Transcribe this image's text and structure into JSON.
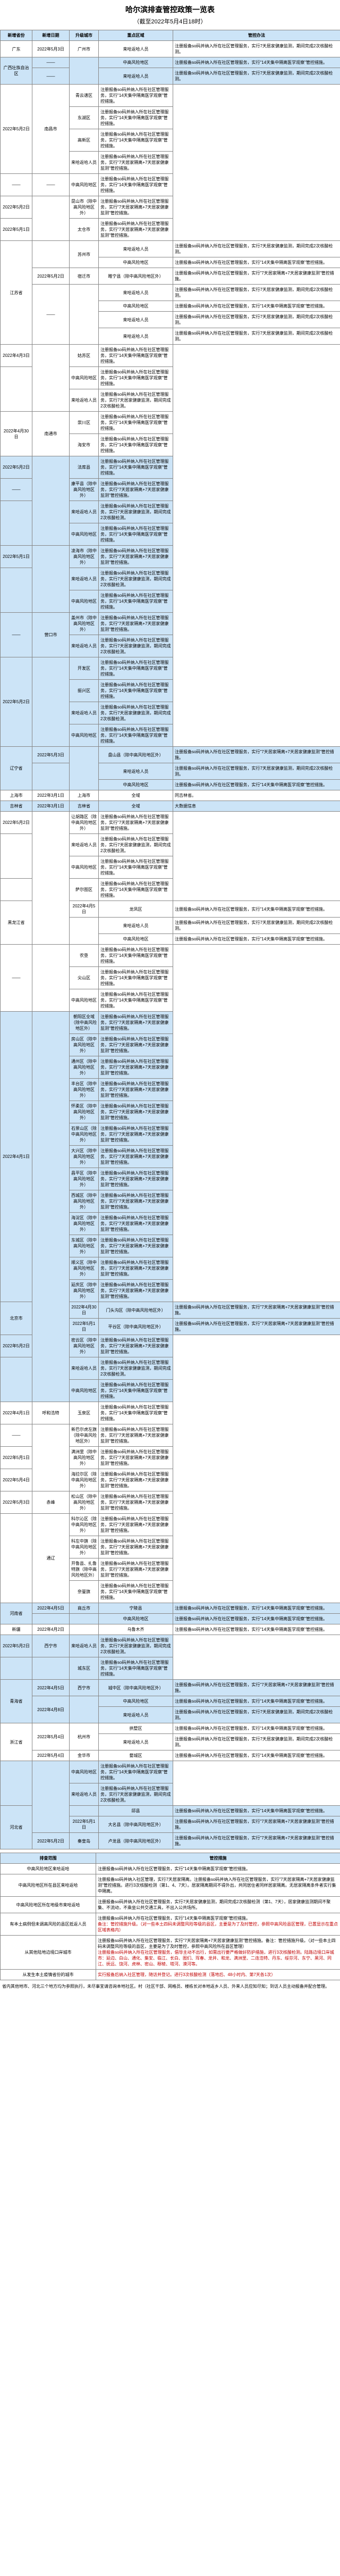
{
  "title": "哈尔滨排查管控政策一览表",
  "subtitle": "（截至2022年5月4日18时）",
  "headers": [
    "新增省份",
    "新增日期",
    "升级城市",
    "重点区域",
    "管控办法"
  ],
  "rows": [
    {
      "bg": false,
      "prov": "广东",
      "provRows": 1,
      "date": "2022年5月3日",
      "dateRows": 1,
      "city": "广州市",
      "cityRows": 1,
      "area": "来哈返哈人员",
      "policy": "注册报备so码并纳入所在社区管理服务，实行7天居家健康监测，期间完成2次核酸检测。"
    },
    {
      "bg": true,
      "prov": "广西壮族自治区",
      "provRows": 2,
      "date": "——",
      "dateRows": 1,
      "city": "",
      "cityRows": 2,
      "area": "中高风险地区",
      "policy": "注册报备so码并纳入所在社区管理服务，实行\"14天集中隔离医学观察\"管控措施。"
    },
    {
      "bg": true,
      "date": "——",
      "dateRows": 1,
      "area": "来哈返哈人员",
      "policy": "注册报备so码并纳入所在社区管理服务，实行7天居家健康监测，期间完成2次核酸检测。"
    },
    {
      "bg": false,
      "prov": "",
      "provRows": 0,
      "date": "2022年5月2日",
      "dateRows": 4,
      "city": "南昌市",
      "cityRows": 4,
      "area": "青云谱区",
      "policy": "注册报备so码并纳入所在社区管理服务，实行\"14天集中隔离医学观察\"管控措施。"
    },
    {
      "bg": false,
      "area": "东湖区",
      "policy": "注册报备so码并纳入所在社区管理服务，实行\"14天集中隔离医学观察\"管控措施。"
    },
    {
      "bg": false,
      "area": "高新区",
      "policy": "注册报备so码并纳入所在社区管理服务，实行\"14天集中隔离医学观察\"管控措施。"
    },
    {
      "bg": false,
      "area": "来哈返哈人员",
      "policy": "注册报备so码并纳入所在社区管理服务，实行\"7天居家隔离+7天居家健康监测\"管控措施。"
    },
    {
      "bg": false,
      "prov": "",
      "date": "——",
      "dateRows": 1,
      "city": "——",
      "cityRows": 1,
      "area": "中高风险地区",
      "policy": "注册报备so码并纳入所在社区管理服务，实行\"14天集中隔离医学观察\"管控措施。"
    },
    {
      "bg": false,
      "prov": "",
      "date": "2022年5月2日",
      "dateRows": 1,
      "city": "",
      "cityRows": 2,
      "area": "昆山市（除中高风险地区外）",
      "policy": "注册报备so码并纳入所在社区管理服务，实行\"7天居家隔离+7天居家健康监测\"管控措施。"
    },
    {
      "bg": false,
      "prov": "",
      "date": "2022年5月1日",
      "dateRows": 1,
      "area": "太仓市",
      "policy": "注册报备so码并纳入所在社区管理服务，实行\"7天居家隔离+7天居家健康监测\"管控措施。"
    },
    {
      "bg": false,
      "prov": "江苏省",
      "provRows": 7,
      "date": "",
      "dateRows": 2,
      "city": "苏州市",
      "cityRows": 2,
      "area": "来哈返哈人员",
      "policy": "注册报备so码并纳入所在社区管理服务，实行7天居家健康监测，期间完成2次核酸检测。"
    },
    {
      "bg": false,
      "area": "中高风险地区",
      "policy": "注册报备so码并纳入所在社区管理服务，实行\"14天集中隔离医学观察\"管控措施。"
    },
    {
      "bg": false,
      "date": "2022年5月2日",
      "dateRows": 1,
      "city": "宿迁市",
      "cityRows": 1,
      "area": "睢宁县（除中高风险地区外）",
      "policy": "注册报备so码并纳入所在社区管理服务，实行\"7天居家隔离+7天居家健康监测\"管控措施。"
    },
    {
      "bg": false,
      "date": "——",
      "dateRows": 4,
      "city": "",
      "cityRows": 4,
      "area": "来哈返哈人员",
      "policy": "注册报备so码并纳入所在社区管理服务，实行7天居家健康监测，期间完成2次核酸检测。"
    },
    {
      "bg": false,
      "area": "中高风险地区",
      "policy": "注册报备so码并纳入所在社区管理服务，实行\"14天集中隔离医学观察\"管控措施。"
    },
    {
      "bg": false,
      "area": "来哈返哈人员",
      "policy": "注册报备so码并纳入所在社区管理服务，实行7天居家健康监测，期间完成2次核酸检测。"
    },
    {
      "bg": false,
      "area": "来哈返哈人员",
      "policy": "注册报备so码并纳入所在社区管理服务，实行7天居家健康监测，期间完成2次核酸检测。"
    },
    {
      "bg": false,
      "prov": "",
      "date": "2022年4月3日",
      "dateRows": 1,
      "city": "",
      "cityRows": 3,
      "area": "姑苏区",
      "policy": "注册报备so码并纳入所在社区管理服务，实行\"14天集中隔离医学观察\"管控措施。"
    },
    {
      "bg": false,
      "date": "",
      "dateRows": 2,
      "area": "中高风险地区",
      "policy": "注册报备so码并纳入所在社区管理服务，实行\"14天集中隔离医学观察\"管控措施。"
    },
    {
      "bg": false,
      "area": "来哈返哈人员",
      "policy": "注册报备so码并纳入所在社区管理服务，实行7天居家健康监测，期间完成2次核酸检测。"
    },
    {
      "bg": false,
      "prov": "",
      "date": "2022年4月30日",
      "dateRows": 2,
      "city": "南通市",
      "cityRows": 2,
      "area": "崇川区",
      "policy": "注册报备so码并纳入所在社区管理服务，实行\"14天集中隔离医学观察\"管控措施。"
    },
    {
      "bg": false,
      "area": "海安市",
      "policy": "注册报备so码并纳入所在社区管理服务，实行\"14天集中隔离医学观察\"管控措施。"
    },
    {
      "bg": true,
      "prov": "",
      "provRows": 0,
      "date": "2022年5月2日",
      "dateRows": 1,
      "city": "",
      "cityRows": 4,
      "area": "法库县",
      "policy": "注册报备so码并纳入所在社区管理服务，实行\"14天集中隔离医学观察\"管控措施。"
    },
    {
      "bg": true,
      "date": "——",
      "dateRows": 1,
      "city": "沈阳市",
      "area": "康平县（除中高风险地区外）",
      "policy": "注册报备so码并纳入所在社区管理服务，实行\"7天居家隔离+7天居家健康监测\"管控措施。"
    },
    {
      "bg": true,
      "date": "",
      "dateRows": 2,
      "area": "来哈返哈人员",
      "policy": "注册报备so码并纳入所在社区管理服务，实行7天居家健康监测，期间完成2次核酸检测。"
    },
    {
      "bg": true,
      "area": "中高风险地区",
      "policy": "注册报备so码并纳入所在社区管理服务，实行\"14天集中隔离医学观察\"管控措施。"
    },
    {
      "bg": true,
      "prov": "",
      "date": "2022年5月1日",
      "dateRows": 1,
      "city": "",
      "cityRows": 3,
      "area": "凌海市（除中高风险地区外）",
      "policy": "注册报备so码并纳入所在社区管理服务，实行\"7天居家隔离+7天居家健康监测\"管控措施。"
    },
    {
      "bg": true,
      "date": "",
      "dateRows": 2,
      "city": "锦州市",
      "area": "来哈返哈人员",
      "policy": "注册报备so码并纳入所在社区管理服务，实行7天居家健康监测，期间完成2次核酸检测。"
    },
    {
      "bg": true,
      "area": "中高风险地区",
      "policy": "注册报备so码并纳入所在社区管理服务，实行\"14天集中隔离医学观察\"管控措施。"
    },
    {
      "bg": true,
      "prov": "",
      "date": "——",
      "dateRows": 2,
      "city": "营口市",
      "cityRows": 2,
      "area": "盖州市（除中高风险地区外）",
      "policy": "注册报备so码并纳入所在社区管理服务，实行\"7天居家隔离+7天居家健康监测\"管控措施。"
    },
    {
      "bg": true,
      "area": "来哈返哈人员",
      "policy": "注册报备so码并纳入所在社区管理服务，实行7天居家健康监测，期间完成2次核酸检测。"
    },
    {
      "bg": true,
      "prov": "",
      "date": "2022年5月2日",
      "dateRows": 4,
      "city": "",
      "cityRows": 4,
      "area": "开发区",
      "policy": "注册报备so码并纳入所在社区管理服务，实行\"14天集中隔离医学观察\"管控措施。"
    },
    {
      "bg": true,
      "city": "丹东市",
      "area": "振兴区",
      "policy": "注册报备so码并纳入所在社区管理服务，实行\"14天集中隔离医学观察\"管控措施。"
    },
    {
      "bg": true,
      "area": "来哈返哈人员",
      "policy": "注册报备so码并纳入所在社区管理服务，实行7天居家健康监测，期间完成2次核酸检测。"
    },
    {
      "bg": true,
      "area": "中高风险地区",
      "policy": "注册报备so码并纳入所在社区管理服务，实行\"14天集中隔离医学观察\"管控措施。"
    },
    {
      "bg": true,
      "prov": "辽宁省",
      "provRows": 3,
      "date": "2022年5月3日",
      "dateRows": 1,
      "city": "",
      "cityRows": 3,
      "area": "盘山县（除中高风险地区外）",
      "policy": "注册报备so码并纳入所在社区管理服务，实行\"7天居家隔离+7天居家健康监测\"管控措施。"
    },
    {
      "bg": true,
      "date": "",
      "dateRows": 2,
      "city": "盘锦市",
      "area": "来哈返哈人员",
      "policy": "注册报备so码并纳入所在社区管理服务，实行7天居家健康监测，期间完成2次核酸检测。"
    },
    {
      "bg": true,
      "area": "中高风险地区",
      "policy": "注册报备so码并纳入所在社区管理服务，实行\"14天集中隔离医学观察\"管控措施。"
    },
    {
      "bg": false,
      "prov": "上海市",
      "provRows": 1,
      "date": "2022年3月1日",
      "dateRows": 1,
      "city": "上海市",
      "cityRows": 1,
      "area": "全域",
      "policy": "同吉林省。"
    },
    {
      "bg": true,
      "prov": "吉林省",
      "provRows": 1,
      "date": "2022年3月1日",
      "dateRows": 1,
      "city": "吉林省",
      "cityRows": 1,
      "area": "全域",
      "policy": "大数据信息"
    },
    {
      "bg": false,
      "prov": "",
      "provRows": 0,
      "date": "2022年5月2日",
      "dateRows": 1,
      "city": "",
      "cityRows": 7,
      "area": "让胡路区（除中高风险地区外）",
      "policy": "注册报备so码并纳入所在社区管理服务，实行\"7天居家隔离+7天居家健康监测\"管控措施。"
    },
    {
      "bg": false,
      "date": "",
      "dateRows": 2,
      "city": "大庆市",
      "area": "来哈返哈人员",
      "policy": "注册报备so码并纳入所在社区管理服务，实行7天居家健康监测，期间完成2次核酸检测。"
    },
    {
      "bg": false,
      "area": "中高风险地区",
      "policy": "注册报备so码并纳入所在社区管理服务，实行\"14天集中隔离医学观察\"管控措施。"
    },
    {
      "bg": false,
      "date": "",
      "dateRows": 1,
      "area": "萨尔图区",
      "policy": "注册报备so码并纳入所在社区管理服务，实行\"14天集中隔离医学观察\"管控措施。"
    },
    {
      "bg": false,
      "prov": "黑龙江省",
      "provRows": 3,
      "date": "2022年4月5日",
      "dateRows": 1,
      "area": "龙凤区",
      "policy": "注册报备so码并纳入所在社区管理服务，实行\"14天集中隔离医学观察\"管控措施。"
    },
    {
      "bg": false,
      "date": "",
      "dateRows": 2,
      "area": "来哈返哈人员",
      "policy": "注册报备so码并纳入所在社区管理服务，实行7天居家健康监测，期间完成2次核酸检测。"
    },
    {
      "bg": false,
      "area": "中高风险地区",
      "policy": "注册报备so码并纳入所在社区管理服务，实行\"14天集中隔离医学观察\"管控措施。"
    },
    {
      "bg": false,
      "date": "——",
      "dateRows": 3,
      "city": "",
      "cityRows": 3,
      "area": "农垦",
      "policy": "注册报备so码并纳入所在社区管理服务，实行\"14天集中隔离医学观察\"管控措施。"
    },
    {
      "bg": false,
      "city": "双鸭山",
      "area": "尖山区",
      "policy": "注册报备so码并纳入所在社区管理服务，实行\"14天集中隔离医学观察\"管控措施。"
    },
    {
      "bg": false,
      "area": "中高风险地区",
      "policy": "注册报备so码并纳入所在社区管理服务，实行\"14天集中隔离医学观察\"管控措施。"
    },
    {
      "bg": true,
      "prov": "",
      "provRows": 0,
      "date": "2022年4月1日",
      "dateRows": 13,
      "city": "",
      "cityRows": 18,
      "area": "朝阳区全域（除中高风险地区外）",
      "policy": "注册报备so码并纳入所在社区管理服务，实行\"7天居家隔离+7天居家健康监测\"管控措施。"
    },
    {
      "bg": true,
      "area": "房山区（除中高风险地区外）",
      "policy": "注册报备so码并纳入所在社区管理服务，实行\"7天居家隔离+7天居家健康监测\"管控措施。"
    },
    {
      "bg": true,
      "area": "通州区（除中高风险地区外）",
      "policy": "注册报备so码并纳入所在社区管理服务，实行\"7天居家隔离+7天居家健康监测\"管控措施。"
    },
    {
      "bg": true,
      "area": "丰台区（除中高风险地区外）",
      "policy": "注册报备so码并纳入所在社区管理服务，实行\"7天居家隔离+7天居家健康监测\"管控措施。"
    },
    {
      "bg": true,
      "area": "怀柔区（除中高风险地区外）",
      "policy": "注册报备so码并纳入所在社区管理服务，实行\"7天居家隔离+7天居家健康监测\"管控措施。"
    },
    {
      "bg": true,
      "area": "石景山区（除中高风险地区外）",
      "policy": "注册报备so码并纳入所在社区管理服务，实行\"7天居家隔离+7天居家健康监测\"管控措施。"
    },
    {
      "bg": true,
      "area": "大兴区（除中高风险地区外）",
      "policy": "注册报备so码并纳入所在社区管理服务，实行\"7天居家隔离+7天居家健康监测\"管控措施。"
    },
    {
      "bg": true,
      "area": "昌平区（除中高风险地区外）",
      "policy": "注册报备so码并纳入所在社区管理服务，实行\"7天居家隔离+7天居家健康监测\"管控措施。"
    },
    {
      "bg": true,
      "area": "西城区（除中高风险地区外）",
      "policy": "注册报备so码并纳入所在社区管理服务，实行\"7天居家隔离+7天居家健康监测\"管控措施。"
    },
    {
      "bg": true,
      "area": "海淀区（除中高风险地区外）",
      "policy": "注册报备so码并纳入所在社区管理服务，实行\"7天居家隔离+7天居家健康监测\"管控措施。"
    },
    {
      "bg": true,
      "area": "东城区（除中高风险地区外）",
      "policy": "注册报备so码并纳入所在社区管理服务，实行\"7天居家隔离+7天居家健康监测\"管控措施。"
    },
    {
      "bg": true,
      "area": "顺义区（除中高风险地区外）",
      "policy": "注册报备so码并纳入所在社区管理服务，实行\"7天居家隔离+7天居家健康监测\"管控措施。"
    },
    {
      "bg": true,
      "area": "延庆区（除中高风险地区外）",
      "policy": "注册报备so码并纳入所在社区管理服务，实行\"7天居家隔离+7天居家健康监测\"管控措施。"
    },
    {
      "bg": true,
      "prov": "北京市",
      "provRows": 2,
      "date": "2022年4月30日",
      "dateRows": 1,
      "area": "门头沟区（除中高风险地区外）",
      "policy": "注册报备so码并纳入所在社区管理服务，实行\"7天居家隔离+7天居家健康监测\"管控措施。"
    },
    {
      "bg": true,
      "date": "2022年5月1日",
      "dateRows": 1,
      "area": "平谷区（除中高风险地区外）",
      "policy": "注册报备so码并纳入所在社区管理服务，实行\"7天居家隔离+7天居家健康监测\"管控措施。"
    },
    {
      "bg": true,
      "prov": "",
      "provRows": 0,
      "date": "2022年5月2日",
      "dateRows": 1,
      "city": "北京市",
      "area": "密云区（除中高风险地区外）",
      "policy": "注册报备so码并纳入所在社区管理服务，实行\"7天居家隔离+7天居家健康监测\"管控措施。"
    },
    {
      "bg": true,
      "date": "",
      "dateRows": 2,
      "area": "来哈返哈人员",
      "policy": "注册报备so码并纳入所在社区管理服务，实行7天居家健康监测，期间完成2次核酸检测。"
    },
    {
      "bg": true,
      "area": "中高风险地区",
      "policy": "注册报备so码并纳入所在社区管理服务，实行\"14天集中隔离医学观察\"管控措施。"
    },
    {
      "bg": false,
      "prov": "",
      "date": "2022年4月1日",
      "dateRows": 1,
      "city": "呼和浩特",
      "cityRows": 1,
      "area": "玉泉区",
      "policy": "注册报备so码并纳入所在社区管理服务，实行\"14天集中隔离医学观察\"管控措施。"
    },
    {
      "bg": false,
      "date": "——",
      "dateRows": 1,
      "city": "",
      "cityRows": 3,
      "area": "新巴尔虎左旗（除中高风险地区外）",
      "policy": "注册报备so码并纳入所在社区管理服务，实行\"7天居家隔离+7天居家健康监测\"管控措施。"
    },
    {
      "bg": false,
      "date": "2022年5月1日",
      "dateRows": 1,
      "city": "呼伦贝尔市",
      "area": "满洲里（除中高风险地区外）",
      "policy": "注册报备so码并纳入所在社区管理服务，实行\"7天居家隔离+7天居家健康监测\"管控措施。"
    },
    {
      "bg": false,
      "date": "2022年5月4日",
      "dateRows": 1,
      "area": "海拉尔区（除中高风险地区外）",
      "policy": "注册报备so码并纳入所在社区管理服务，实行\"7天居家隔离+7天居家健康监测\"管控措施。"
    },
    {
      "bg": false,
      "date": "2022年5月3日",
      "dateRows": 1,
      "city": "赤峰",
      "cityRows": 1,
      "area": "松山区（除中高风险地区外）",
      "policy": "注册报备so码并纳入所在社区管理服务，实行\"7天居家隔离+7天居家健康监测\"管控措施。"
    },
    {
      "bg": false,
      "date": "",
      "dateRows": 4,
      "city": "通辽",
      "cityRows": 4,
      "area": "科尔沁区（除中高风险地区外）",
      "policy": "注册报备so码并纳入所在社区管理服务，实行\"7天居家隔离+7天居家健康监测\"管控措施。"
    },
    {
      "bg": false,
      "area": "科左中旗（除中高风险地区外）",
      "policy": "注册报备so码并纳入所在社区管理服务，实行\"7天居家隔离+7天居家健康监测\"管控措施。"
    },
    {
      "bg": false,
      "area": "开鲁县、扎鲁特旗（除中高风险地区外）",
      "policy": "注册报备so码并纳入所在社区管理服务，实行\"7天居家隔离+7天居家健康监测\"管控措施。"
    },
    {
      "bg": false,
      "area": "奈曼旗",
      "policy": "注册报备so码并纳入所在社区管理服务，实行\"14天集中隔离医学观察\"管控措施。"
    },
    {
      "bg": true,
      "prov": "河南省",
      "provRows": 2,
      "date": "2022年4月5日",
      "dateRows": 1,
      "city": "商丘市",
      "cityRows": 1,
      "area": "宁陵县",
      "policy": "注册报备so码并纳入所在社区管理服务，实行\"14天集中隔离医学观察\"管控措施。"
    },
    {
      "bg": true,
      "date": "",
      "dateRows": 1,
      "city": "",
      "cityRows": 1,
      "area": "中高风险地区",
      "policy": "注册报备so码并纳入所在社区管理服务，实行\"14天集中隔离医学观察\"管控措施。"
    },
    {
      "bg": false,
      "prov": "新疆",
      "provRows": 1,
      "date": "2022年4月2日",
      "dateRows": 1,
      "city": "",
      "cityRows": 1,
      "area": "乌鲁木齐",
      "policy": "注册报备so码并纳入所在社区管理服务，实行\"14天集中隔离医学观察\"管控措施。"
    },
    {
      "bg": true,
      "prov": "",
      "provRows": 0,
      "date": "2022年5月2日",
      "dateRows": 1,
      "city": "西宁市",
      "cityRows": 1,
      "area": "来哈返哈人员",
      "policy": "注册报备so码并纳入所在社区管理服务，实行7天居家健康监测，期间完成2次核酸检测。"
    },
    {
      "bg": true,
      "date": "",
      "dateRows": 1,
      "city": "",
      "cityRows": 1,
      "area": "城东区",
      "policy": "注册报备so码并纳入所在社区管理服务，实行\"14天集中隔离医学观察\"管控措施。"
    },
    {
      "bg": true,
      "prov": "青海省",
      "provRows": 3,
      "date": "2022年4月5日",
      "dateRows": 1,
      "city": "西宁市",
      "cityRows": 1,
      "area": "城中区（除中高风险地区外）",
      "policy": "注册报备so码并纳入所在社区管理服务，实行\"7天居家隔离+7天居家健康监测\"管控措施。"
    },
    {
      "bg": true,
      "date": "2022年4月8日",
      "dateRows": 2,
      "city": "",
      "cityRows": 2,
      "area": "中高风险地区",
      "policy": "注册报备so码并纳入所在社区管理服务，实行\"14天集中隔离医学观察\"管控措施。"
    },
    {
      "bg": true,
      "area": "来哈返哈人员",
      "policy": "注册报备so码并纳入所在社区管理服务，实行7天居家健康监测，期间完成2次核酸检测。"
    },
    {
      "bg": false,
      "prov": "浙江省",
      "provRows": 3,
      "date": "2022年5月4日",
      "dateRows": 2,
      "city": "杭州市",
      "cityRows": 2,
      "area": "拱墅区",
      "policy": "注册报备so码并纳入所在社区管理服务，实行\"14天集中隔离医学观察\"管控措施。"
    },
    {
      "bg": false,
      "area": "来哈返哈人员",
      "policy": "注册报备so码并纳入所在社区管理服务，实行7天居家健康监测，期间完成2次核酸检测。"
    },
    {
      "bg": false,
      "date": "2022年5月4日",
      "dateRows": 1,
      "city": "金华市",
      "cityRows": 1,
      "area": "婺城区",
      "policy": "注册报备so码并纳入所在社区管理服务，实行\"14天集中隔离医学观察\"管控措施。"
    },
    {
      "bg": true,
      "prov": "",
      "provRows": 0,
      "date": "",
      "dateRows": 2,
      "city": "",
      "cityRows": 4,
      "area": "中高风险地区",
      "policy": "注册报备so码并纳入所在社区管理服务，实行\"14天集中隔离医学观察\"管控措施。"
    },
    {
      "bg": true,
      "city": "",
      "area": "来哈返哈人员",
      "policy": "注册报备so码并纳入所在社区管理服务，实行7天居家健康监测，期间完成2次核酸检测。"
    },
    {
      "bg": true,
      "prov": "河北省",
      "provRows": 3,
      "date": "",
      "dateRows": 1,
      "city": "邯郸",
      "area": "邱县",
      "policy": "注册报备so码并纳入所在社区管理服务，实行\"14天集中隔离医学观察\"管控措施。"
    },
    {
      "bg": true,
      "date": "2022年5月1日",
      "dateRows": 1,
      "area": "大名县（除中高风险地区外）",
      "policy": "注册报备so码并纳入所在社区管理服务，实行\"7天居家隔离+7天居家健康监测\"管控措施。"
    },
    {
      "bg": true,
      "date": "2022年5月2日",
      "dateRows": 1,
      "city": "秦皇岛",
      "cityRows": 1,
      "area": "卢龙县（除中高风险地区外）",
      "policy": "注册报备so码并纳入所在社区管理服务，实行\"7天居家隔离+7天居家健康监测\"管控措施。"
    }
  ],
  "section2_headers": [
    "排查范围",
    "管控措施"
  ],
  "section2_rows": [
    {
      "scope": "中高风险地区来哈返哈",
      "measure": "注册报备so码并纳入所在社区管理服务，实行\"14天集中隔离医学观察\"管控措施。"
    },
    {
      "scope": "中高风险地区所在县区来哈返哈",
      "measure": "注册报备so码并纳入社区管理，实行7天居家隔离。注册报备so码并纳入所在社区管理服务，实行\"7天居家隔离+7天居家健康监测\"管控措施。进行3次核酸检测（第1、4、7天）。居家隔离期间不得外出，共同居住者同样居家隔离。无居家隔离条件者实行集中隔离。"
    },
    {
      "scope": "中高风险地区所在地级市来哈返哈",
      "measure": "注册报备so码并纳入所在社区管理服务，实行7天居家健康监测，期间完成2次核酸检测（第1、7天），居家健康监测期间不聚集、不流动，不乘坐公共交通工具，不出入公共场所。"
    },
    {
      "scope": "有本土病例但未调高风险的县区抵返人员",
      "measure_html": "注册报备so码并纳入所在社区管理服务，实行\"14天集中隔离医学观察\"管控措施。<br><span class='red'>备注：管控措施升级。（对一些本土四码未调整风险等级的县区，主要是为了及时管控，参照中高风险县区管理，已置显示在重点区域表格内）</span>"
    },
    {
      "scope": "从其他陆地边境口岸城市",
      "measure_html": "注册报备so码并纳入所在社区管理服务，实行\"7天居家隔离+7天居家健康监测\"管控措施。备注：管控措施升级。（对一些本土四码未调整风险等级的县区，主要是为了及时管控，参照中高风险所在县区管理）<br><span class='red'>注册报备so码并纳入所在社区管理服务，倡导主动不出行，如需出行要严格做好防护措施，进行3次核酸检测。陆路边境口岸城市：延边、白山、通化、集安、临江、长白、图们、珲春、龙井、和龙、满洲里、二连浩特、丹东、绥芬河、东宁、黑河、同江、抚远、饶河、虎林、密山、穆棱、塔河、漠河等。</span>"
    },
    {
      "scope": "从发生本土疫情省份的城市",
      "measure_html": "<span class='red'>实行报备后纳入社区管理，随访并登记。进行3次核酸检测（落地后、48小时内、第7天各1次）</span>"
    }
  ],
  "note": "省内其他地市、河北三个地方均为参照执行，未尽事宜请咨询本地社区。村（社区干部、网格员、楼栋长对本地返乡人员、外来人员应知尽知；到访人员主动报备并配合管理。"
}
